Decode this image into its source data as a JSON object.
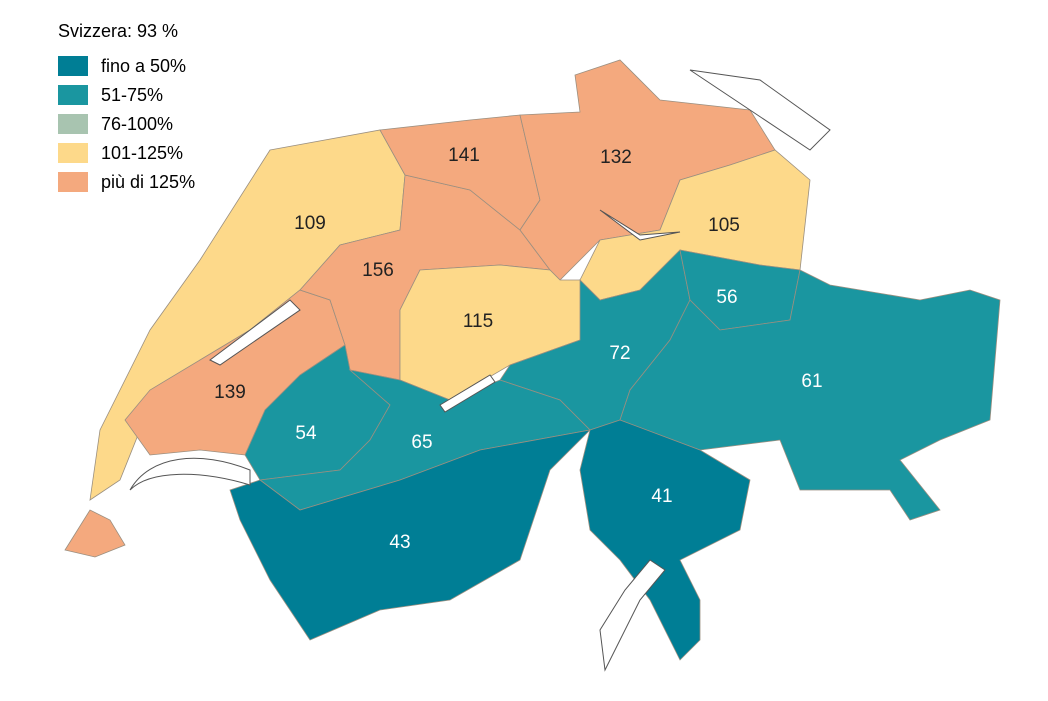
{
  "header": {
    "title": "Svizzera: 93 %"
  },
  "legend": {
    "items": [
      {
        "label": "fino a 50%",
        "color": "#007e95"
      },
      {
        "label": "51-75%",
        "color": "#1a96a0"
      },
      {
        "label": "76-100%",
        "color": "#a8c4b0"
      },
      {
        "label": "101-125%",
        "color": "#fdd98a"
      },
      {
        "label": "più di 125%",
        "color": "#f4a97e"
      }
    ]
  },
  "regions": [
    {
      "label": 109,
      "color": "#fdd98a"
    },
    {
      "label": 139,
      "color": "#f4a97e"
    },
    {
      "label": 156,
      "color": "#f4a97e"
    },
    {
      "label": 141,
      "color": "#f4a97e"
    },
    {
      "label": 132,
      "color": "#f4a97e"
    },
    {
      "label": 105,
      "color": "#fdd98a"
    },
    {
      "label": 115,
      "color": "#fdd98a"
    },
    {
      "label": 72,
      "color": "#1a96a0"
    },
    {
      "label": 56,
      "color": "#1a96a0"
    },
    {
      "label": 61,
      "color": "#1a96a0"
    },
    {
      "label": 54,
      "color": "#1a96a0"
    },
    {
      "label": 65,
      "color": "#1a96a0"
    },
    {
      "label": 43,
      "color": "#007e95"
    },
    {
      "label": 41,
      "color": "#007e95"
    }
  ]
}
